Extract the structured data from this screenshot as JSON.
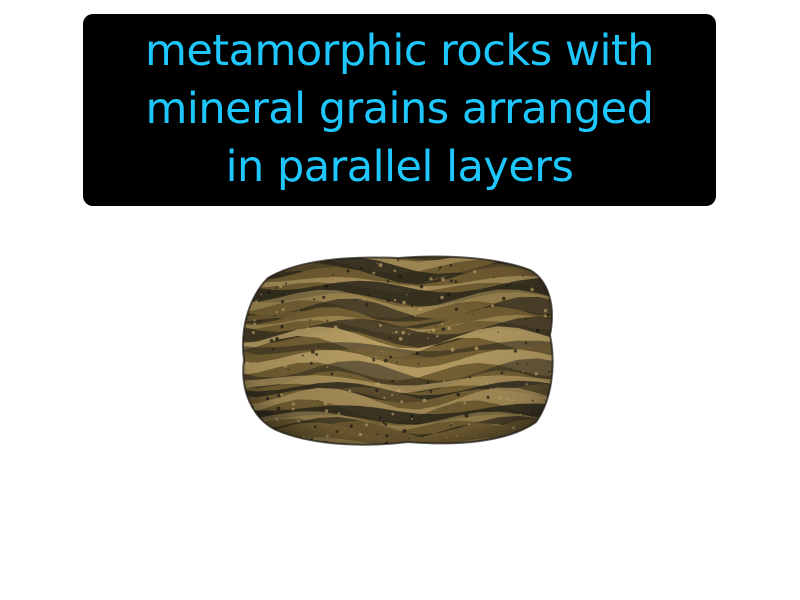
{
  "caption": {
    "lines": [
      "metamorphic rocks with",
      "mineral grains arranged",
      "in parallel layers"
    ],
    "text_color": "#1ec8ff",
    "box_color": "#000000"
  },
  "image": {
    "subject": "banded rock specimen",
    "colors": {
      "base": "#7a6536",
      "light_band": "#c7ab6e",
      "dark_band": "#2f2a1d",
      "shadow": "#1c1a14"
    }
  }
}
